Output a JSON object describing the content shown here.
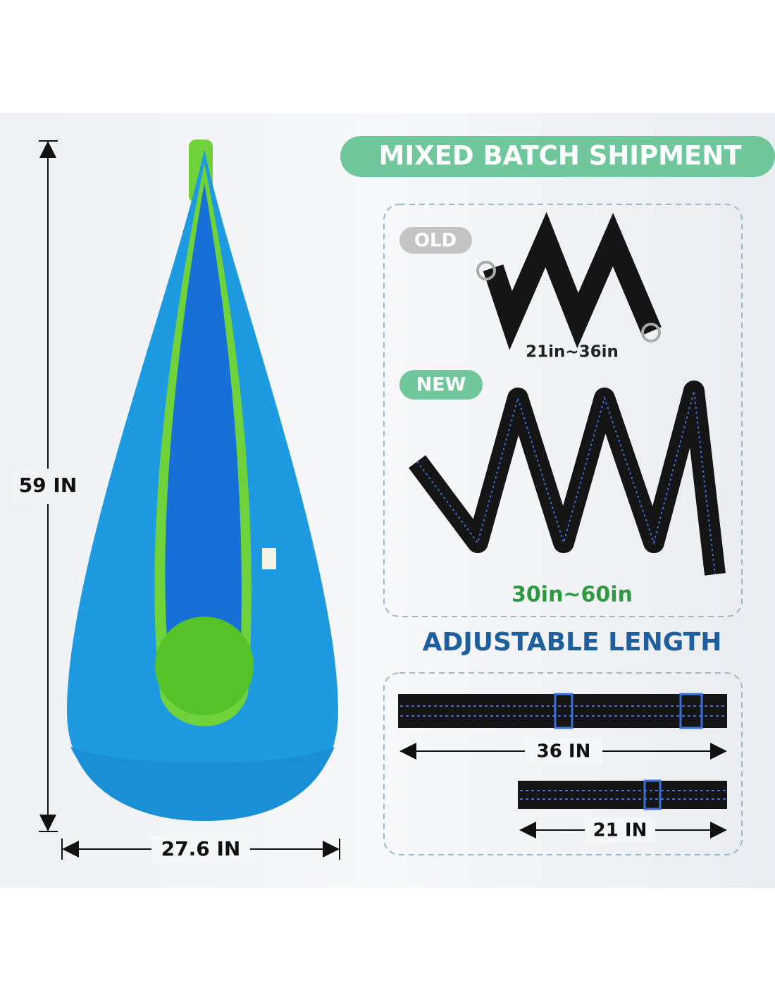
{
  "banner": {
    "title": "MIXED BATCH SHIPMENT"
  },
  "pod": {
    "height_label": "59 IN",
    "width_label": "27.6 IN"
  },
  "old_strap": {
    "badge": "OLD",
    "length": "21in~36in"
  },
  "new_strap": {
    "badge": "NEW",
    "length": "30in~60in"
  },
  "adjustable": {
    "title": "ADJUSTABLE LENGTH",
    "long_label": "36 IN",
    "short_label": "21 IN"
  }
}
